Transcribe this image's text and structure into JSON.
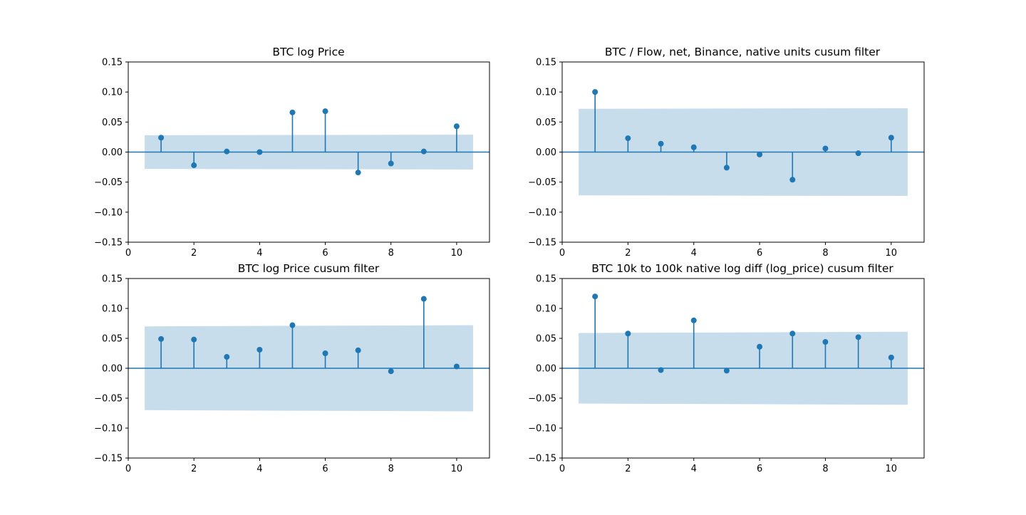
{
  "figure": {
    "colors": {
      "stem": "#1f77b4",
      "band": "#1f77b4",
      "axis": "#000000",
      "background": "#ffffff"
    }
  },
  "chart_data": [
    {
      "type": "scatter",
      "subtype": "pacf-stem",
      "title": "BTC log Price",
      "xlabel": "",
      "ylabel": "",
      "xlim": [
        0,
        11
      ],
      "ylim": [
        -0.15,
        0.15
      ],
      "xticks": [
        "0",
        "2",
        "4",
        "6",
        "8",
        "10"
      ],
      "yticks": [
        "0.15",
        "0.10",
        "0.05",
        "0.00",
        "−0.05",
        "−0.10",
        "−0.15"
      ],
      "x": [
        1,
        2,
        3,
        4,
        5,
        6,
        7,
        8,
        9,
        10
      ],
      "values": [
        0.024,
        -0.022,
        0.001,
        0.0,
        0.066,
        0.068,
        -0.034,
        -0.019,
        0.001,
        0.043
      ],
      "confidence_band": {
        "x": [
          0.5,
          10.5
        ],
        "upper": [
          0.028,
          0.029
        ],
        "lower": [
          -0.028,
          -0.029
        ]
      },
      "grid": false
    },
    {
      "type": "scatter",
      "subtype": "pacf-stem",
      "title": "BTC / Flow, net, Binance, native units cusum filter",
      "xlabel": "",
      "ylabel": "",
      "xlim": [
        0,
        11
      ],
      "ylim": [
        -0.15,
        0.15
      ],
      "xticks": [
        "0",
        "2",
        "4",
        "6",
        "8",
        "10"
      ],
      "yticks": [
        "0.15",
        "0.10",
        "0.05",
        "0.00",
        "−0.05",
        "−0.10",
        "−0.15"
      ],
      "x": [
        1,
        2,
        3,
        4,
        5,
        6,
        7,
        8,
        9,
        10
      ],
      "values": [
        0.1,
        0.023,
        0.014,
        0.008,
        -0.026,
        -0.004,
        -0.046,
        0.006,
        -0.002,
        0.024
      ],
      "confidence_band": {
        "x": [
          0.5,
          10.5
        ],
        "upper": [
          0.072,
          0.073
        ],
        "lower": [
          -0.072,
          -0.073
        ]
      },
      "grid": false
    },
    {
      "type": "scatter",
      "subtype": "pacf-stem",
      "title": "BTC log Price cusum filter",
      "xlabel": "",
      "ylabel": "",
      "xlim": [
        0,
        11
      ],
      "ylim": [
        -0.15,
        0.15
      ],
      "xticks": [
        "0",
        "2",
        "4",
        "6",
        "8",
        "10"
      ],
      "yticks": [
        "0.15",
        "0.10",
        "0.05",
        "0.00",
        "−0.05",
        "−0.10",
        "−0.15"
      ],
      "x": [
        1,
        2,
        3,
        4,
        5,
        6,
        7,
        8,
        9,
        10
      ],
      "values": [
        0.049,
        0.048,
        0.019,
        0.031,
        0.072,
        0.025,
        0.03,
        -0.005,
        0.116,
        0.003
      ],
      "confidence_band": {
        "x": [
          0.5,
          10.5
        ],
        "upper": [
          0.07,
          0.072
        ],
        "lower": [
          -0.07,
          -0.072
        ]
      },
      "grid": false
    },
    {
      "type": "scatter",
      "subtype": "pacf-stem",
      "title": "BTC 10k to 100k native log diff (log_price) cusum filter",
      "xlabel": "",
      "ylabel": "",
      "xlim": [
        0,
        11
      ],
      "ylim": [
        -0.15,
        0.15
      ],
      "xticks": [
        "0",
        "2",
        "4",
        "6",
        "8",
        "10"
      ],
      "yticks": [
        "0.15",
        "0.10",
        "0.05",
        "0.00",
        "−0.05",
        "−0.10",
        "−0.15"
      ],
      "x": [
        1,
        2,
        3,
        4,
        5,
        6,
        7,
        8,
        9,
        10
      ],
      "values": [
        0.12,
        0.058,
        -0.003,
        0.08,
        -0.004,
        0.036,
        0.058,
        0.044,
        0.052,
        0.018
      ],
      "confidence_band": {
        "x": [
          0.5,
          10.5
        ],
        "upper": [
          0.059,
          0.061
        ],
        "lower": [
          -0.059,
          -0.061
        ]
      },
      "grid": false
    }
  ]
}
